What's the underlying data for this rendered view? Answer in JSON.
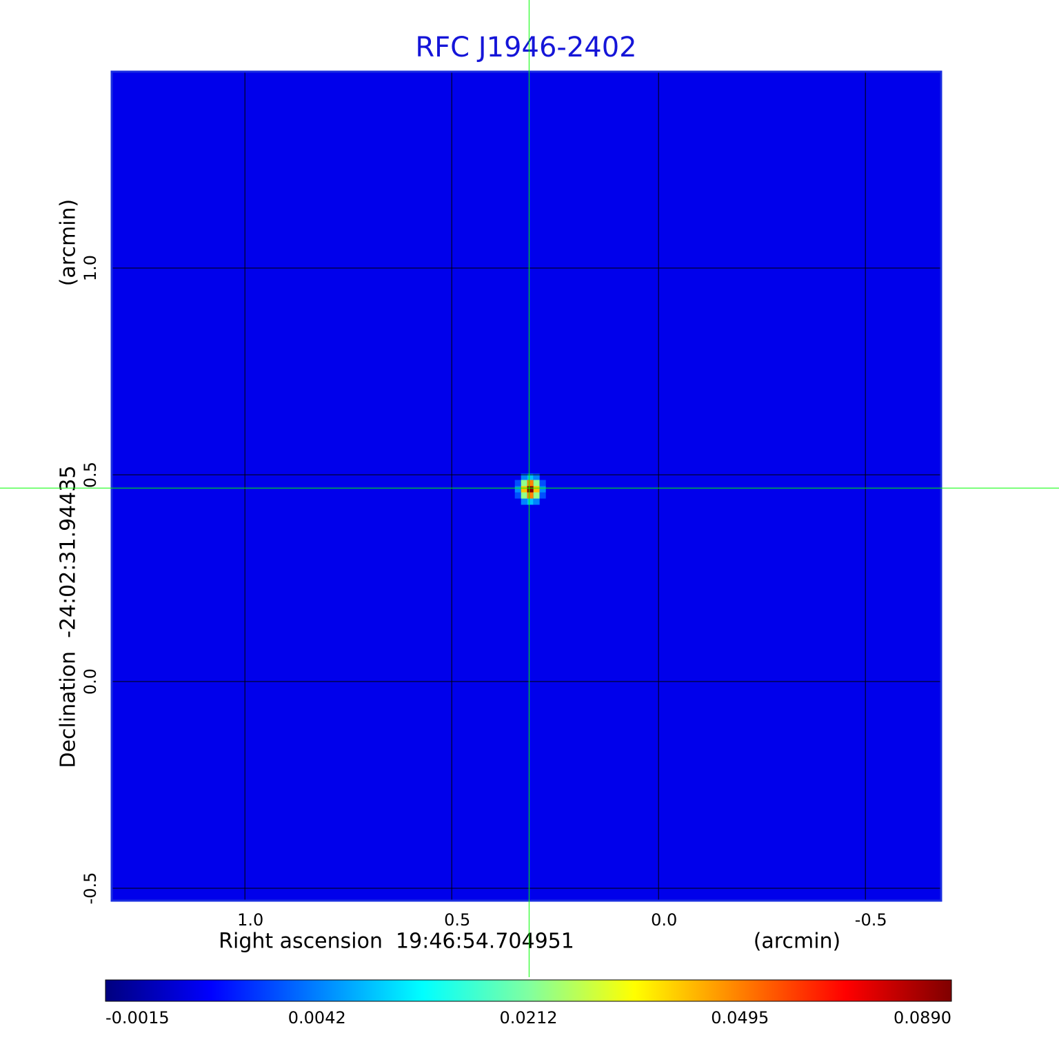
{
  "chart_data": {
    "type": "image",
    "title": "RFC J1946-2402",
    "title_color": "#1515d8",
    "xlabel": "Right ascension  19:46:54.704951",
    "xunit": "(arcmin)",
    "ylabel": "Declination  -24:02:31.94435",
    "yunit": "(arcmin)",
    "xlim": [
      1.322,
      -0.683
    ],
    "ylim": [
      -0.53,
      1.475
    ],
    "xticks": [
      {
        "value": 1,
        "label": "1.0"
      },
      0.5,
      {
        "value": 0,
        "label": "0.0"
      },
      -0.5
    ],
    "yticks": [
      {
        "value": 1,
        "label": "1.0"
      },
      0.5,
      {
        "value": 0,
        "label": "0.0"
      },
      -0.5
    ],
    "grid": true,
    "crosshair": {
      "x": 0.313,
      "y": 0.468,
      "color": "#00ff00"
    },
    "background": 0.0009,
    "source": {
      "x": 0.31,
      "y": 0.465,
      "peak": 0.089
    },
    "colorbar": {
      "ticks": [
        -0.0015,
        0.0042,
        0.0212,
        0.0495,
        {
          "value": 0.089,
          "label": "0.0890"
        }
      ],
      "colormap": [
        "#00007f",
        "#0000ff",
        "#0080ff",
        "#00ffff",
        "#80ffa0",
        "#ffff00",
        "#ff8000",
        "#ff0000",
        "#7f0000"
      ]
    }
  }
}
